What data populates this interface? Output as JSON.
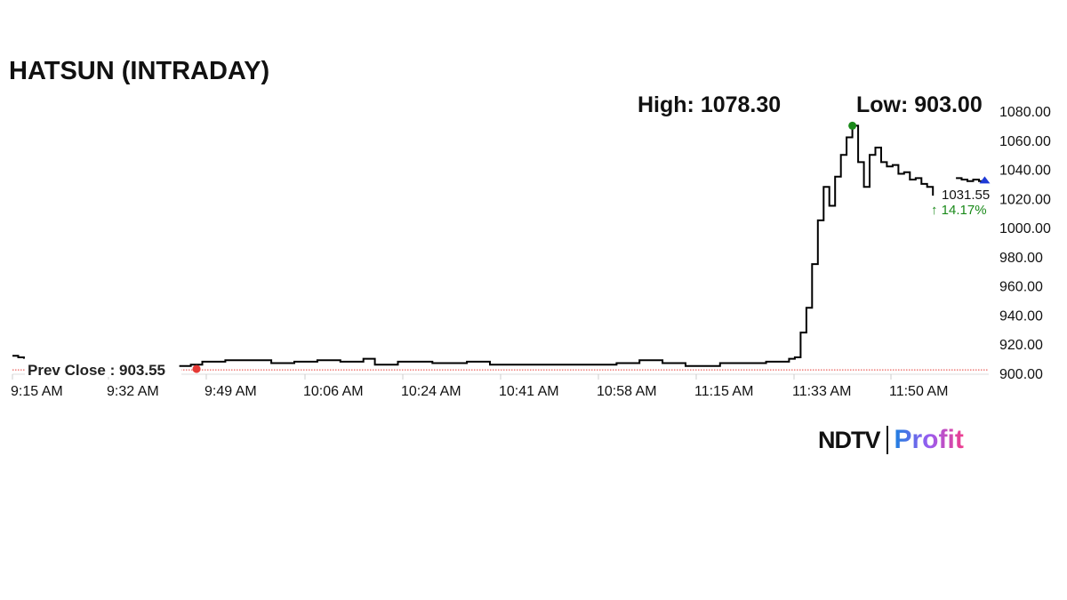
{
  "chart_data": {
    "type": "line",
    "title": "HATSUN (INTRADAY)",
    "high_label": "High: 1078.30",
    "low_label": "Low: 903.00",
    "prev_close_label": "Prev Close : 903.55",
    "prev_close": 903.55,
    "last_price": "1031.55",
    "change_label": "↑ 14.17%",
    "ylim": [
      900,
      1080
    ],
    "y_ticks": [
      "900.00",
      "920.00",
      "940.00",
      "960.00",
      "980.00",
      "1000.00",
      "1020.00",
      "1040.00",
      "1060.00",
      "1080.00"
    ],
    "x_ticks": [
      "9:15 AM",
      "9:32 AM",
      "9:49 AM",
      "10:06 AM",
      "10:24 AM",
      "10:41 AM",
      "10:58 AM",
      "11:15 AM",
      "11:33 AM",
      "11:50 AM"
    ],
    "grid": false,
    "colors": {
      "line": "#000000",
      "prev_close": "#e53935",
      "high_marker": "#1a8a1a",
      "low_marker": "#e53935",
      "last_marker": "#1f3ad6",
      "change": "#1a8a1a"
    },
    "segments": [
      [
        [
          "9:15",
          912
        ],
        [
          "9:16",
          911
        ],
        [
          "9:17",
          910
        ]
      ],
      [
        [
          "9:44",
          905
        ],
        [
          "9:46",
          906
        ],
        [
          "9:48",
          908
        ],
        [
          "9:52",
          909
        ],
        [
          "9:58",
          909
        ],
        [
          "10:00",
          907
        ],
        [
          "10:04",
          908
        ],
        [
          "10:08",
          909
        ],
        [
          "10:12",
          908
        ],
        [
          "10:16",
          910
        ],
        [
          "10:18",
          906
        ],
        [
          "10:22",
          908
        ],
        [
          "10:28",
          907
        ],
        [
          "10:34",
          908
        ],
        [
          "10:38",
          906
        ],
        [
          "10:44",
          906
        ],
        [
          "10:52",
          906
        ],
        [
          "11:00",
          907
        ],
        [
          "11:04",
          909
        ],
        [
          "11:08",
          907
        ],
        [
          "11:12",
          905
        ],
        [
          "11:18",
          907
        ],
        [
          "11:26",
          908
        ],
        [
          "11:30",
          910
        ],
        [
          "11:31",
          911
        ],
        [
          "11:32",
          928
        ],
        [
          "11:33",
          945
        ],
        [
          "11:34",
          975
        ],
        [
          "11:35",
          1005
        ],
        [
          "11:36",
          1028
        ],
        [
          "11:37",
          1015
        ],
        [
          "11:38",
          1035
        ],
        [
          "11:39",
          1050
        ],
        [
          "11:40",
          1062
        ],
        [
          "11:41",
          1070
        ],
        [
          "11:42",
          1045
        ],
        [
          "11:43",
          1028
        ],
        [
          "11:44",
          1050
        ],
        [
          "11:45",
          1055
        ],
        [
          "11:46",
          1045
        ],
        [
          "11:47",
          1042
        ],
        [
          "11:48",
          1043
        ],
        [
          "11:49",
          1037
        ],
        [
          "11:50",
          1038
        ],
        [
          "11:51",
          1033
        ],
        [
          "11:52",
          1034
        ],
        [
          "11:53",
          1030
        ],
        [
          "11:54",
          1028
        ],
        [
          "11:55",
          1022
        ]
      ],
      [
        [
          "11:59",
          1034
        ],
        [
          "12:00",
          1033
        ],
        [
          "12:01",
          1032
        ],
        [
          "12:02",
          1033
        ],
        [
          "12:03",
          1032
        ],
        [
          "12:04",
          1031.55
        ]
      ]
    ],
    "low_point": [
      "9:47",
      903
    ],
    "high_point": [
      "11:41",
      1070
    ],
    "last_point": [
      "12:04",
      1031.55
    ]
  },
  "brand": {
    "left": "NDTV",
    "right": "Profit"
  }
}
